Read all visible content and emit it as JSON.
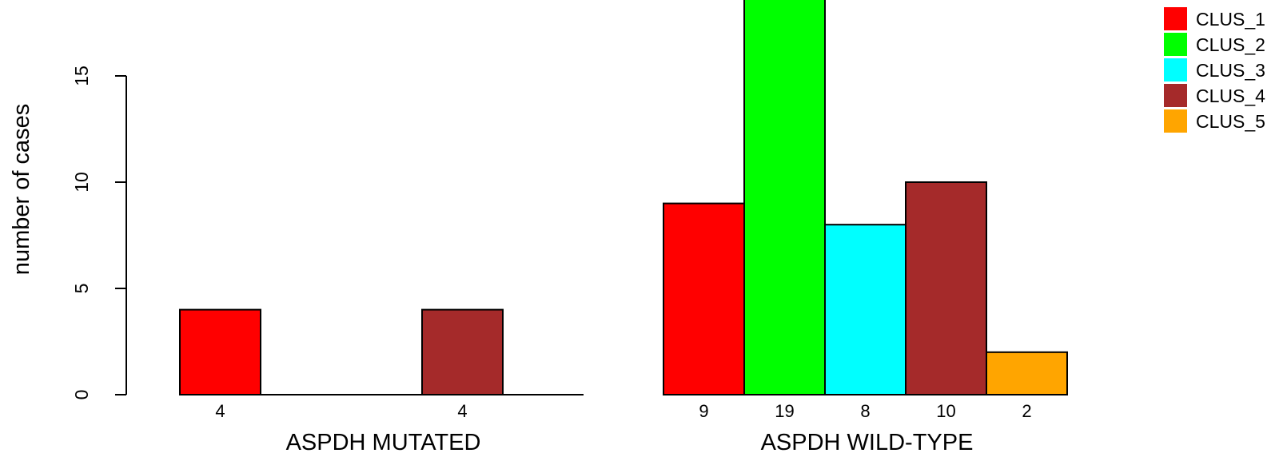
{
  "chart_data": {
    "type": "bar",
    "title": "",
    "ylabel": "number of cases",
    "ylim": [
      0,
      19
    ],
    "yticks": [
      0,
      5,
      10,
      15
    ],
    "grid": false,
    "legend_position": "top-right",
    "categories": [
      "CLUS_1",
      "CLUS_2",
      "CLUS_3",
      "CLUS_4",
      "CLUS_5"
    ],
    "colors": {
      "CLUS_1": "#ff0000",
      "CLUS_2": "#00ff00",
      "CLUS_3": "#00ffff",
      "CLUS_4": "#a52a2a",
      "CLUS_5": "#ffa500"
    },
    "groups": [
      {
        "label": "ASPDH MUTATED",
        "values": [
          4,
          0,
          0,
          4,
          0
        ],
        "count_labels": [
          "4",
          "",
          "",
          "4",
          ""
        ]
      },
      {
        "label": "ASPDH WILD-TYPE",
        "values": [
          9,
          19,
          8,
          10,
          2
        ],
        "count_labels": [
          "9",
          "19",
          "8",
          "10",
          "2"
        ]
      }
    ],
    "legend": [
      "CLUS_1",
      "CLUS_2",
      "CLUS_3",
      "CLUS_4",
      "CLUS_5"
    ]
  }
}
